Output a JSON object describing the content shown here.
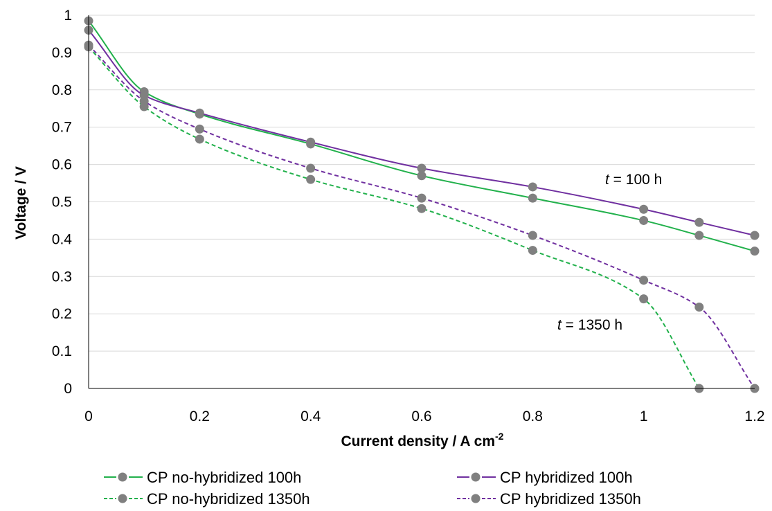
{
  "chart_data": {
    "type": "line",
    "xlabel": "Current density / A cm",
    "xlabel_sup": "-2",
    "ylabel": "Voltage / V",
    "xlim": [
      0,
      1.2
    ],
    "ylim": [
      0,
      1
    ],
    "x_ticks": [
      "0",
      "0.2",
      "0.4",
      "0.6",
      "0.8",
      "1",
      "1.2"
    ],
    "y_ticks": [
      "0",
      "0.1",
      "0.2",
      "0.3",
      "0.4",
      "0.5",
      "0.6",
      "0.7",
      "0.8",
      "0.9",
      "1"
    ],
    "grid": "horizontal",
    "legend_position": "bottom",
    "marker_color": "#808080",
    "series": [
      {
        "name": "CP no-hybridized 100h",
        "color": "#22b14c",
        "style": "solid",
        "x": [
          0,
          0.1,
          0.2,
          0.4,
          0.6,
          0.8,
          1.0,
          1.1,
          1.2
        ],
        "y": [
          0.985,
          0.795,
          0.735,
          0.655,
          0.57,
          0.51,
          0.45,
          0.41,
          0.368
        ]
      },
      {
        "name": "CP hybridized 100h",
        "color": "#7030a0",
        "style": "solid",
        "x": [
          0,
          0.1,
          0.2,
          0.4,
          0.6,
          0.8,
          1.0,
          1.1,
          1.2
        ],
        "y": [
          0.96,
          0.785,
          0.738,
          0.66,
          0.59,
          0.54,
          0.48,
          0.445,
          0.41
        ]
      },
      {
        "name": "CP no-hybridized 1350h",
        "color": "#22b14c",
        "style": "dashed",
        "x": [
          0,
          0.1,
          0.2,
          0.4,
          0.6,
          0.8,
          1.0,
          1.1
        ],
        "y": [
          0.915,
          0.755,
          0.668,
          0.56,
          0.482,
          0.37,
          0.24,
          0
        ]
      },
      {
        "name": "CP hybridized 1350h",
        "color": "#7030a0",
        "style": "dashed",
        "x": [
          0,
          0.1,
          0.2,
          0.4,
          0.6,
          0.8,
          1.0,
          1.1,
          1.2
        ],
        "y": [
          0.92,
          0.77,
          0.695,
          0.59,
          0.51,
          0.41,
          0.29,
          0.218,
          0
        ]
      }
    ],
    "annotations": [
      {
        "italic": "t",
        "text": " = 100 h",
        "x": 1.02,
        "y": 0.56
      },
      {
        "italic": "t",
        "text": " = 1350 h",
        "x": 0.79,
        "y": 0.165
      }
    ]
  }
}
